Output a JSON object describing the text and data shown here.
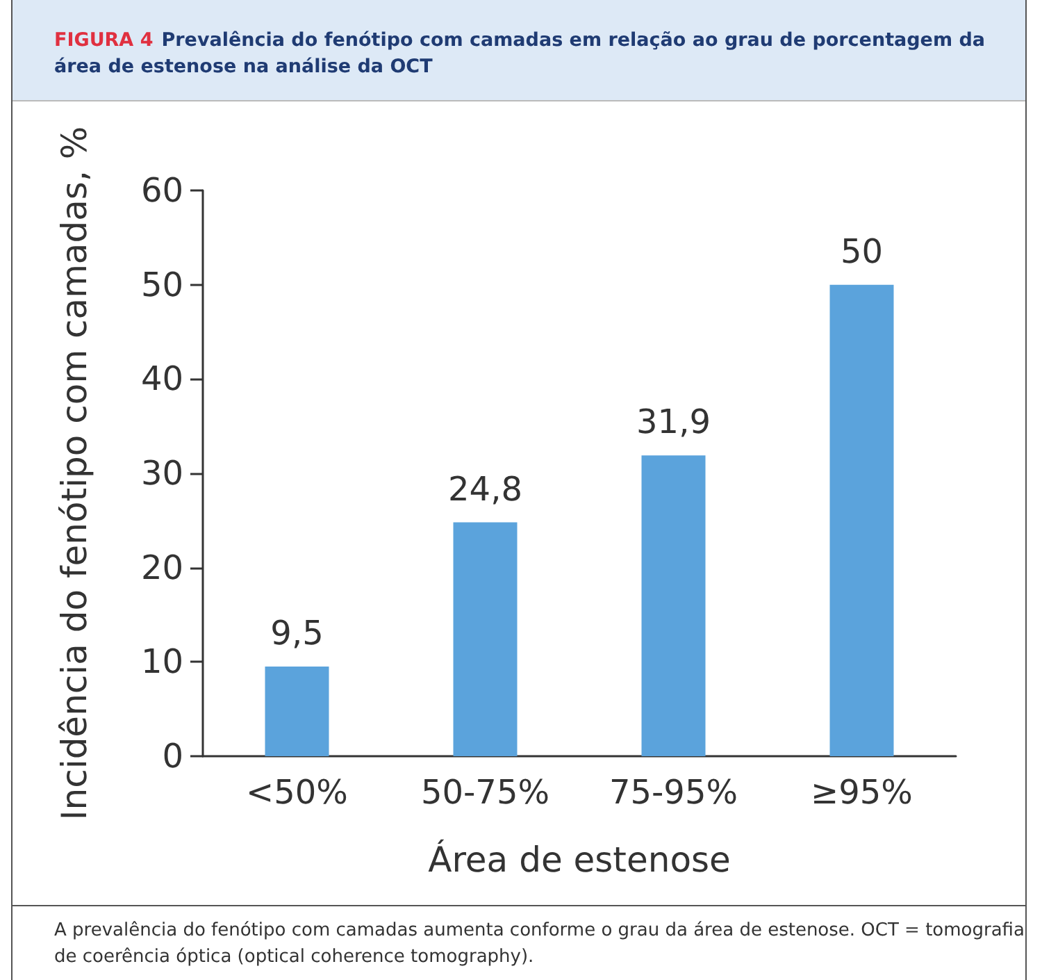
{
  "chart_data": {
    "type": "bar",
    "title": "FIGURA 4",
    "subtitle": "Prevalência do fenótipo com camadas em relação ao grau de porcentagem da área de estenose na análise da OCT",
    "categories": [
      "<50%",
      "50-75%",
      "75-95%",
      "≥95%"
    ],
    "values": [
      9.5,
      24.8,
      31.9,
      50
    ],
    "color": "#5ba3dc",
    "ylim": [
      0,
      60
    ],
    "yticks": [
      0,
      10,
      20,
      30,
      40,
      50,
      60
    ],
    "grid": false,
    "value_labels": [
      "9,5",
      "24,8",
      "31,9",
      "50"
    ],
    "xlabel": "Área de estenose",
    "ylabel": "Incidência do fenótipo com camadas, %",
    "annotations": [
      "A prevalência do fenótipo com camadas aumenta conforme o grau da área de estenose. OCT = tomografia de coerência óptica (optical coherence tomography)."
    ]
  }
}
